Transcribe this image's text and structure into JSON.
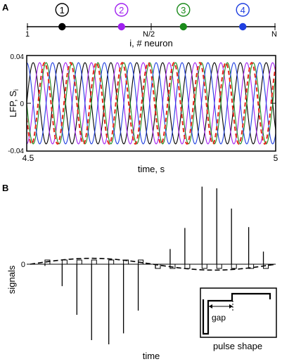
{
  "panels": {
    "a": {
      "letter": "A"
    },
    "b": {
      "letter": "B"
    }
  },
  "colors": {
    "black": "#000000",
    "purple": "#a020f0",
    "green": "#1a8a1a",
    "blue": "#1f3fe0",
    "red_dashed": "#e8231a"
  },
  "chart_data": [
    {
      "type": "diagram",
      "panel": "A-top",
      "axis_label": "i, # neuron",
      "ticks": [
        "1",
        "N/2",
        "N"
      ],
      "neurons": [
        {
          "label": "1",
          "x": 0.14,
          "color": "#000000"
        },
        {
          "label": "2",
          "x": 0.38,
          "color": "#a020f0"
        },
        {
          "label": "3",
          "x": 0.63,
          "color": "#1a8a1a"
        },
        {
          "label": "4",
          "x": 0.87,
          "color": "#1f3fe0"
        }
      ]
    },
    {
      "type": "line",
      "panel": "A-bottom",
      "xlabel": "time, s",
      "ylabel": "LFP, S",
      "ylabel_sub": "i",
      "xlim": [
        4.5,
        5
      ],
      "ylim": [
        -0.04,
        0.04
      ],
      "x_tick_labels": [
        "4.5",
        "5"
      ],
      "y_tick_labels": [
        "0.04",
        "0",
        "-0.04"
      ],
      "period_s": 0.052,
      "series": [
        {
          "color": "#000000",
          "style": "solid",
          "amplitude": 0.034,
          "phase_fraction": 0.0
        },
        {
          "color": "#a020f0",
          "style": "solid",
          "amplitude": 0.034,
          "phase_fraction": 0.25
        },
        {
          "color": "#1a8a1a",
          "style": "solid",
          "amplitude": 0.034,
          "phase_fraction": 0.5
        },
        {
          "color": "#1f3fe0",
          "style": "solid",
          "amplitude": 0.034,
          "phase_fraction": 0.75
        },
        {
          "color": "#e8231a",
          "style": "dashed",
          "amplitude": 0.034,
          "phase_fraction": 0.44
        }
      ]
    },
    {
      "type": "spike-train",
      "panel": "B",
      "ylabel": "signals",
      "xlabel": "time",
      "y_tick_labels": [
        "0"
      ],
      "ylim": [
        -1.0,
        1.0
      ],
      "spike_times": [
        0.06,
        0.13,
        0.19,
        0.25,
        0.32,
        0.38,
        0.44,
        0.51,
        0.57,
        0.63,
        0.7,
        0.76,
        0.82,
        0.89,
        0.95
      ],
      "spike_values": [
        -0.02,
        -0.26,
        -0.6,
        -0.9,
        -0.95,
        -0.82,
        -0.55,
        -0.05,
        0.18,
        0.43,
        0.92,
        0.9,
        0.66,
        0.44,
        0.15
      ],
      "envelope": {
        "style": "dashed",
        "amplitude": 0.07
      },
      "inset": {
        "caption": "pulse shape",
        "annotation": "gap"
      }
    }
  ]
}
